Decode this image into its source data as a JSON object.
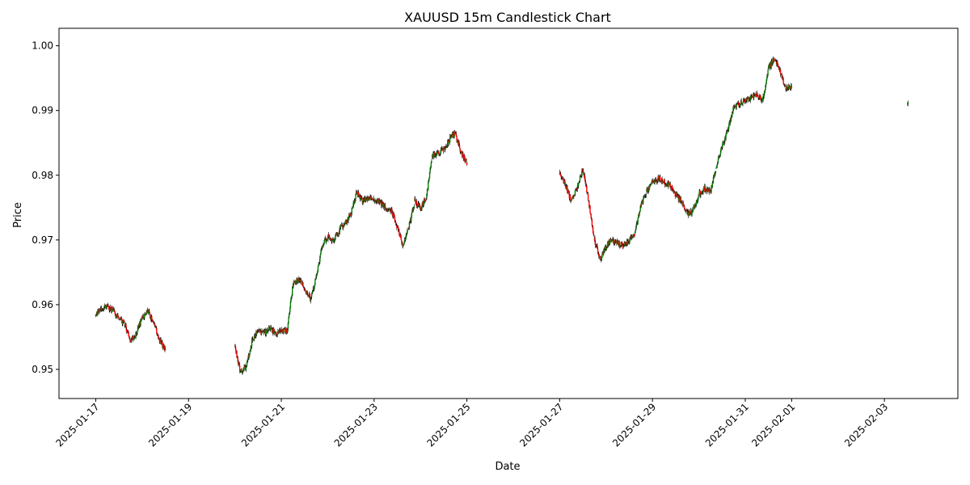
{
  "chart_data": {
    "type": "candlestick",
    "title": "XAUUSD 15m Candlestick Chart",
    "xlabel": "Date",
    "ylabel": "Price",
    "x_tick_labels": [
      "2025-01-17",
      "2025-01-19",
      "2025-01-21",
      "2025-01-23",
      "2025-01-25",
      "2025-01-27",
      "2025-01-29",
      "2025-01-31",
      "2025-02-01",
      "2025-02-03"
    ],
    "y_tick_labels": [
      "0.95",
      "0.96",
      "0.97",
      "0.98",
      "0.99",
      "1.00"
    ],
    "xlim": [
      "2025-01-16 05:00",
      "2025-02-04 14:00"
    ],
    "ylim": [
      0.9455,
      1.0027
    ],
    "grid": false,
    "colors": {
      "up": "#008000",
      "down": "#ff0000",
      "wick": "#000000"
    },
    "price_path": [
      {
        "x": "2025-01-17 00:00",
        "y": 0.9585
      },
      {
        "x": "2025-01-17 03:00",
        "y": 0.9595
      },
      {
        "x": "2025-01-17 06:00",
        "y": 0.9598
      },
      {
        "x": "2025-01-17 09:00",
        "y": 0.959
      },
      {
        "x": "2025-01-17 12:00",
        "y": 0.9578
      },
      {
        "x": "2025-01-17 15:00",
        "y": 0.957
      },
      {
        "x": "2025-01-17 18:00",
        "y": 0.9545
      },
      {
        "x": "2025-01-17 21:00",
        "y": 0.9555
      },
      {
        "x": "2025-01-18 00:00",
        "y": 0.958
      },
      {
        "x": "2025-01-18 03:00",
        "y": 0.959
      },
      {
        "x": "2025-01-18 06:00",
        "y": 0.957
      },
      {
        "x": "2025-01-18 09:00",
        "y": 0.9545
      },
      {
        "x": "2025-01-18 12:00",
        "y": 0.953
      },
      {
        "x": "2025-01-20 00:00",
        "y": 0.9535
      },
      {
        "x": "2025-01-20 03:00",
        "y": 0.9495
      },
      {
        "x": "2025-01-20 06:00",
        "y": 0.9505
      },
      {
        "x": "2025-01-20 09:00",
        "y": 0.9545
      },
      {
        "x": "2025-01-20 12:00",
        "y": 0.956
      },
      {
        "x": "2025-01-20 15:00",
        "y": 0.9555
      },
      {
        "x": "2025-01-20 18:00",
        "y": 0.9565
      },
      {
        "x": "2025-01-20 21:00",
        "y": 0.9555
      },
      {
        "x": "2025-01-21 00:00",
        "y": 0.956
      },
      {
        "x": "2025-01-21 03:00",
        "y": 0.956
      },
      {
        "x": "2025-01-21 06:00",
        "y": 0.963
      },
      {
        "x": "2025-01-21 09:00",
        "y": 0.964
      },
      {
        "x": "2025-01-21 12:00",
        "y": 0.9625
      },
      {
        "x": "2025-01-21 15:00",
        "y": 0.961
      },
      {
        "x": "2025-01-21 18:00",
        "y": 0.964
      },
      {
        "x": "2025-01-21 21:00",
        "y": 0.969
      },
      {
        "x": "2025-01-22 00:00",
        "y": 0.9705
      },
      {
        "x": "2025-01-22 03:00",
        "y": 0.97
      },
      {
        "x": "2025-01-22 06:00",
        "y": 0.9715
      },
      {
        "x": "2025-01-22 09:00",
        "y": 0.9725
      },
      {
        "x": "2025-01-22 12:00",
        "y": 0.974
      },
      {
        "x": "2025-01-22 15:00",
        "y": 0.9775
      },
      {
        "x": "2025-01-22 18:00",
        "y": 0.976
      },
      {
        "x": "2025-01-22 21:00",
        "y": 0.9765
      },
      {
        "x": "2025-01-23 00:00",
        "y": 0.9762
      },
      {
        "x": "2025-01-23 03:00",
        "y": 0.9758
      },
      {
        "x": "2025-01-23 06:00",
        "y": 0.975
      },
      {
        "x": "2025-01-23 09:00",
        "y": 0.9745
      },
      {
        "x": "2025-01-23 12:00",
        "y": 0.972
      },
      {
        "x": "2025-01-23 15:00",
        "y": 0.969
      },
      {
        "x": "2025-01-23 18:00",
        "y": 0.972
      },
      {
        "x": "2025-01-23 21:00",
        "y": 0.976
      },
      {
        "x": "2025-01-24 00:00",
        "y": 0.975
      },
      {
        "x": "2025-01-24 03:00",
        "y": 0.9765
      },
      {
        "x": "2025-01-24 06:00",
        "y": 0.983
      },
      {
        "x": "2025-01-24 09:00",
        "y": 0.9835
      },
      {
        "x": "2025-01-24 12:00",
        "y": 0.984
      },
      {
        "x": "2025-01-24 15:00",
        "y": 0.9855
      },
      {
        "x": "2025-01-24 18:00",
        "y": 0.9865
      },
      {
        "x": "2025-01-24 21:00",
        "y": 0.9835
      },
      {
        "x": "2025-01-25 00:00",
        "y": 0.982
      },
      {
        "x": "2025-01-27 00:00",
        "y": 0.9805
      },
      {
        "x": "2025-01-27 03:00",
        "y": 0.9785
      },
      {
        "x": "2025-01-27 06:00",
        "y": 0.976
      },
      {
        "x": "2025-01-27 09:00",
        "y": 0.978
      },
      {
        "x": "2025-01-27 12:00",
        "y": 0.981
      },
      {
        "x": "2025-01-27 15:00",
        "y": 0.976
      },
      {
        "x": "2025-01-27 18:00",
        "y": 0.97
      },
      {
        "x": "2025-01-27 21:00",
        "y": 0.967
      },
      {
        "x": "2025-01-28 00:00",
        "y": 0.969
      },
      {
        "x": "2025-01-28 03:00",
        "y": 0.97
      },
      {
        "x": "2025-01-28 06:00",
        "y": 0.9695
      },
      {
        "x": "2025-01-28 09:00",
        "y": 0.969
      },
      {
        "x": "2025-01-28 12:00",
        "y": 0.97
      },
      {
        "x": "2025-01-28 15:00",
        "y": 0.971
      },
      {
        "x": "2025-01-28 18:00",
        "y": 0.9755
      },
      {
        "x": "2025-01-28 21:00",
        "y": 0.9775
      },
      {
        "x": "2025-01-29 00:00",
        "y": 0.979
      },
      {
        "x": "2025-01-29 03:00",
        "y": 0.9795
      },
      {
        "x": "2025-01-29 06:00",
        "y": 0.979
      },
      {
        "x": "2025-01-29 09:00",
        "y": 0.9785
      },
      {
        "x": "2025-01-29 12:00",
        "y": 0.977
      },
      {
        "x": "2025-01-29 15:00",
        "y": 0.976
      },
      {
        "x": "2025-01-29 18:00",
        "y": 0.974
      },
      {
        "x": "2025-01-29 21:00",
        "y": 0.9745
      },
      {
        "x": "2025-01-30 00:00",
        "y": 0.977
      },
      {
        "x": "2025-01-30 03:00",
        "y": 0.978
      },
      {
        "x": "2025-01-30 06:00",
        "y": 0.9775
      },
      {
        "x": "2025-01-30 09:00",
        "y": 0.981
      },
      {
        "x": "2025-01-30 12:00",
        "y": 0.9845
      },
      {
        "x": "2025-01-30 15:00",
        "y": 0.987
      },
      {
        "x": "2025-01-30 18:00",
        "y": 0.9905
      },
      {
        "x": "2025-01-30 21:00",
        "y": 0.991
      },
      {
        "x": "2025-01-31 00:00",
        "y": 0.9915
      },
      {
        "x": "2025-01-31 03:00",
        "y": 0.992
      },
      {
        "x": "2025-01-31 06:00",
        "y": 0.9925
      },
      {
        "x": "2025-01-31 09:00",
        "y": 0.9915
      },
      {
        "x": "2025-01-31 12:00",
        "y": 0.9965
      },
      {
        "x": "2025-01-31 15:00",
        "y": 0.998
      },
      {
        "x": "2025-01-31 18:00",
        "y": 0.996
      },
      {
        "x": "2025-01-31 21:00",
        "y": 0.9935
      },
      {
        "x": "2025-02-01 00:00",
        "y": 0.9935
      },
      {
        "x": "2025-02-03 12:00",
        "y": 0.9912
      }
    ]
  }
}
